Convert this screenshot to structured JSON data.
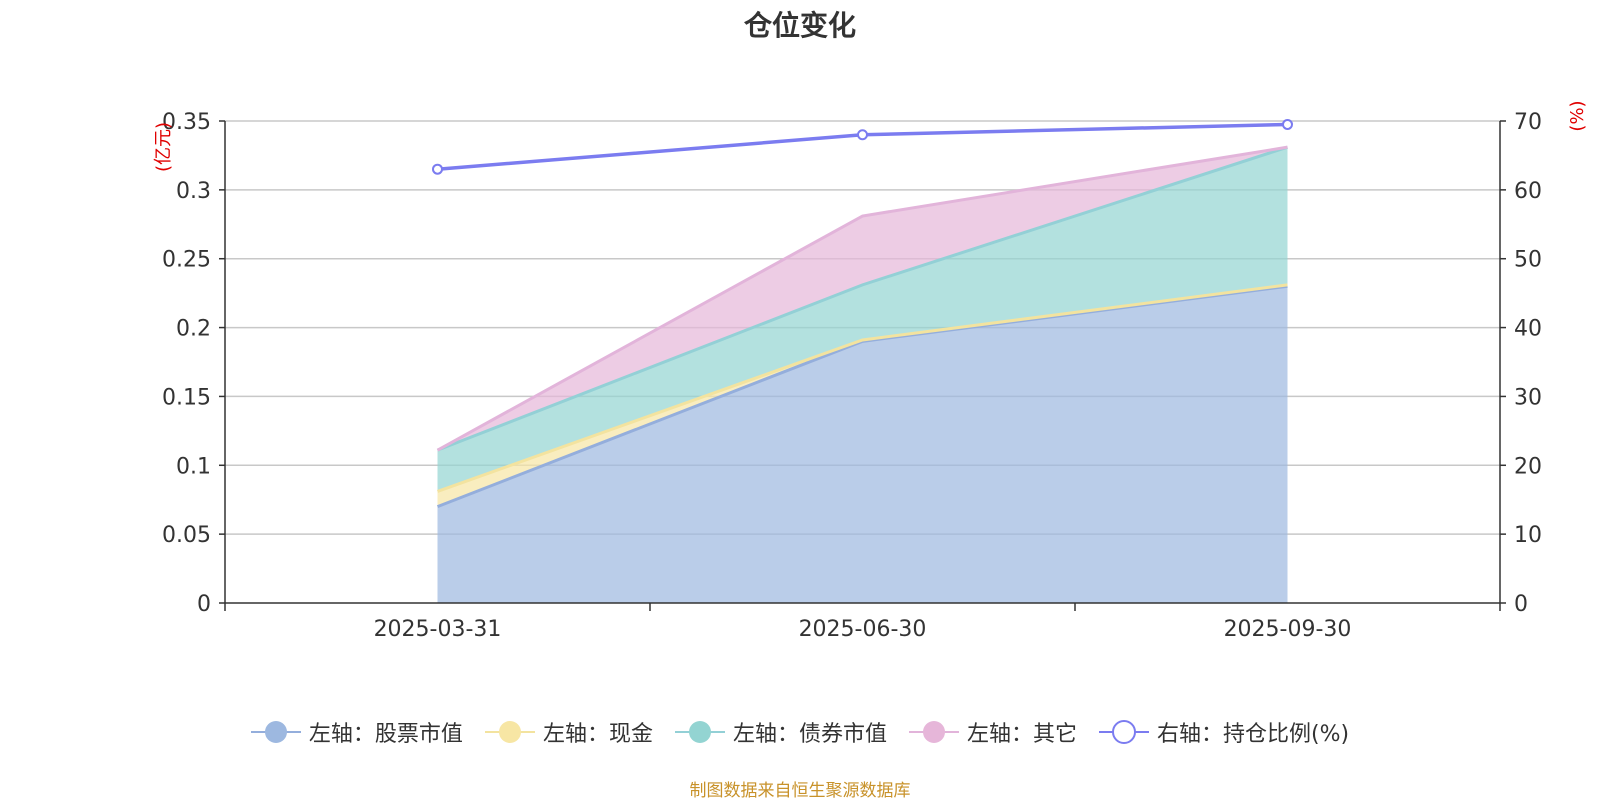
{
  "chart_data": {
    "type": "area",
    "stacked": true,
    "title": "仓位变化",
    "categories": [
      "2025-03-31",
      "2025-06-30",
      "2025-09-30"
    ],
    "left_axis": {
      "unit_label": "(亿元)",
      "range": [
        0,
        0.35
      ],
      "ticks": [
        "0",
        "0.05",
        "0.1",
        "0.15",
        "0.2",
        "0.25",
        "0.3",
        "0.35"
      ],
      "tick_values": [
        0,
        0.05,
        0.1,
        0.15,
        0.2,
        0.25,
        0.3,
        0.35
      ]
    },
    "right_axis": {
      "unit_label": "(%)",
      "range": [
        0,
        70
      ],
      "ticks": [
        "0",
        "10",
        "20",
        "30",
        "40",
        "50",
        "60",
        "70"
      ],
      "tick_values": [
        0,
        10,
        20,
        30,
        40,
        50,
        60,
        70
      ]
    },
    "series": [
      {
        "name": "左轴：股票市值",
        "axis": "left",
        "kind": "area",
        "values": [
          0.07,
          0.19,
          0.23
        ],
        "color": "#9db8e0",
        "line_color": "#94aedc"
      },
      {
        "name": "左轴：现金",
        "axis": "left",
        "kind": "area",
        "values": [
          0.011,
          0.001,
          0.001
        ],
        "color": "#f7e6a4",
        "line_color": "#f3e39f"
      },
      {
        "name": "左轴：债券市值",
        "axis": "left",
        "kind": "area",
        "values": [
          0.03,
          0.04,
          0.1
        ],
        "color": "#93d4d2",
        "line_color": "#93d0d6"
      },
      {
        "name": "左轴：其它",
        "axis": "left",
        "kind": "area",
        "values": [
          0.0,
          0.05,
          0.0
        ],
        "color": "#e6b6d9",
        "line_color": "#e2b4da"
      },
      {
        "name": "右轴：持仓比例(%)",
        "axis": "right",
        "kind": "line",
        "values": [
          63,
          68,
          69.5
        ],
        "color": "#7b7cf0"
      }
    ],
    "grid": true,
    "legend_position": "bottom"
  },
  "source_note": "制图数据来自恒生聚源数据库"
}
